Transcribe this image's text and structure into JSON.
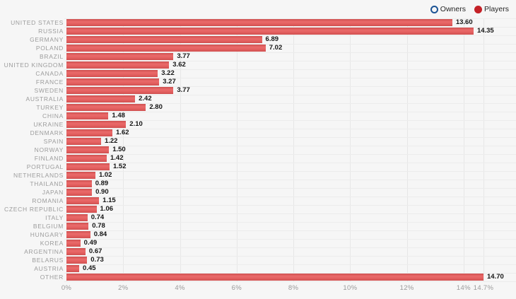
{
  "legend": {
    "items": [
      {
        "label": "Owners",
        "series_visible": false,
        "marker_style": "outline",
        "marker_color": "#1b5394"
      },
      {
        "label": "Players",
        "series_visible": true,
        "marker_style": "filled",
        "marker_color": "#c42127"
      }
    ]
  },
  "chart_data": {
    "type": "bar",
    "orientation": "horizontal",
    "title": "",
    "categories": [
      "UNITED STATES",
      "RUSSIA",
      "GERMANY",
      "POLAND",
      "BRAZIL",
      "UNITED KINGDOM",
      "CANADA",
      "FRANCE",
      "SWEDEN",
      "AUSTRALIA",
      "TURKEY",
      "CHINA",
      "UKRAINE",
      "DENMARK",
      "SPAIN",
      "NORWAY",
      "FINLAND",
      "PORTUGAL",
      "NETHERLANDS",
      "THAILAND",
      "JAPAN",
      "ROMANIA",
      "CZECH REPUBLIC",
      "ITALY",
      "BELGIUM",
      "HUNGARY",
      "KOREA",
      "ARGENTINA",
      "BELARUS",
      "AUSTRIA",
      "OTHER"
    ],
    "series": [
      {
        "name": "Owners",
        "visible": false
      },
      {
        "name": "Players",
        "visible": true,
        "color": "#e05c5c",
        "values": [
          13.6,
          14.35,
          6.89,
          7.02,
          3.77,
          3.62,
          3.22,
          3.27,
          3.77,
          2.42,
          2.8,
          1.48,
          2.1,
          1.62,
          1.22,
          1.5,
          1.42,
          1.52,
          1.02,
          0.89,
          0.9,
          1.15,
          1.06,
          0.74,
          0.78,
          0.84,
          0.49,
          0.67,
          0.73,
          0.45,
          14.7
        ],
        "value_labels": [
          "13.60",
          "14.35",
          "6.89",
          "7.02",
          "3.77",
          "3.62",
          "3.22",
          "3.27",
          "3.77",
          "2.42",
          "2.80",
          "1.48",
          "2.10",
          "1.62",
          "1.22",
          "1.50",
          "1.42",
          "1.52",
          "1.02",
          "0.89",
          "0.90",
          "1.15",
          "1.06",
          "0.74",
          "0.78",
          "0.84",
          "0.49",
          "0.67",
          "0.73",
          "0.45",
          "14.70"
        ]
      }
    ],
    "xlim": [
      0,
      14.7
    ],
    "x_ticks": [
      {
        "label": "0%",
        "value": 0
      },
      {
        "label": "2%",
        "value": 2
      },
      {
        "label": "4%",
        "value": 4
      },
      {
        "label": "6%",
        "value": 6
      },
      {
        "label": "8%",
        "value": 8
      },
      {
        "label": "10%",
        "value": 10
      },
      {
        "label": "12%",
        "value": 12
      },
      {
        "label": "14%",
        "value": 14
      },
      {
        "label": "14.7%",
        "value": 14.7
      }
    ],
    "grid": true,
    "legend_position": "top-right",
    "colors": {
      "background": "#f6f6f6",
      "bar": "#e05c5c",
      "category_label": "#9c9c9c",
      "value_label": "#151515",
      "axis_label": "#9a9a9a",
      "gridline": "#ececec"
    }
  }
}
